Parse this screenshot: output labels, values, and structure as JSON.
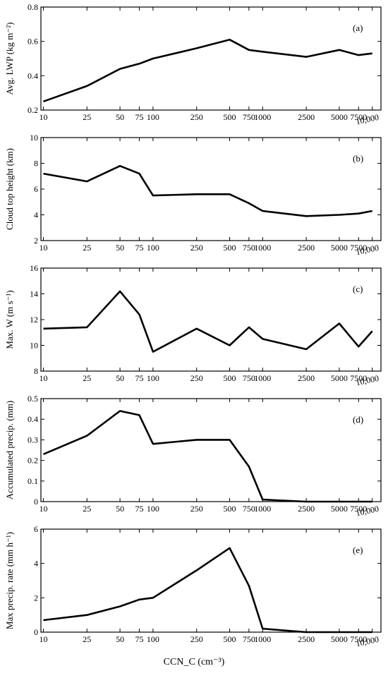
{
  "x_axis_label": "CCN_C (cm⁻³)",
  "x_tick_labels": [
    "10",
    "25",
    "50",
    "75",
    "100",
    "250",
    "500",
    "750",
    "1000",
    "2500",
    "5000",
    "7500",
    "10,000"
  ],
  "x_tick_values": [
    10,
    25,
    50,
    75,
    100,
    250,
    500,
    750,
    1000,
    2500,
    5000,
    7500,
    10000
  ],
  "chart_data": [
    {
      "type": "line",
      "panel_label": "(a)",
      "ylabel": "Avg. LWP (kg m⁻²)",
      "ylim": [
        0.2,
        0.8
      ],
      "yticks": [
        0.2,
        0.4,
        0.6,
        0.8
      ],
      "ytick_labels": [
        "0.2",
        "0.4",
        "0.6",
        "0.8"
      ],
      "xscale": "log",
      "x": [
        10,
        25,
        50,
        75,
        100,
        250,
        500,
        750,
        1000,
        2500,
        5000,
        7500,
        10000
      ],
      "y": [
        0.25,
        0.34,
        0.44,
        0.47,
        0.5,
        0.56,
        0.61,
        0.55,
        0.54,
        0.51,
        0.55,
        0.52,
        0.53
      ]
    },
    {
      "type": "line",
      "panel_label": "(b)",
      "ylabel": "Cloud top height (km)",
      "ylim": [
        2,
        10
      ],
      "yticks": [
        2,
        4,
        6,
        8,
        10
      ],
      "ytick_labels": [
        "2",
        "4",
        "6",
        "8",
        "10"
      ],
      "xscale": "log",
      "x": [
        10,
        25,
        50,
        75,
        100,
        250,
        500,
        750,
        1000,
        2500,
        5000,
        7500,
        10000
      ],
      "y": [
        7.2,
        6.6,
        7.8,
        7.2,
        5.5,
        5.6,
        5.6,
        4.9,
        4.3,
        3.9,
        4.0,
        4.1,
        4.3
      ]
    },
    {
      "type": "line",
      "panel_label": "(c)",
      "ylabel": "Max. W (m s⁻¹)",
      "ylim": [
        8,
        16
      ],
      "yticks": [
        8,
        10,
        12,
        14,
        16
      ],
      "ytick_labels": [
        "8",
        "10",
        "12",
        "14",
        "16"
      ],
      "xscale": "log",
      "x": [
        10,
        25,
        50,
        75,
        100,
        250,
        500,
        750,
        1000,
        2500,
        5000,
        7500,
        10000
      ],
      "y": [
        11.3,
        11.4,
        14.2,
        12.4,
        9.5,
        11.3,
        10.0,
        11.4,
        10.5,
        9.7,
        11.7,
        9.9,
        11.1
      ]
    },
    {
      "type": "line",
      "panel_label": "(d)",
      "ylabel": "Accumulated precip. (mm)",
      "ylim": [
        0,
        0.5
      ],
      "yticks": [
        0,
        0.1,
        0.2,
        0.3,
        0.4,
        0.5
      ],
      "ytick_labels": [
        "0",
        "0.1",
        "0.2",
        "0.3",
        "0.4",
        "0.5"
      ],
      "xscale": "log",
      "x": [
        10,
        25,
        50,
        75,
        100,
        250,
        500,
        750,
        1000,
        2500,
        5000,
        7500,
        10000
      ],
      "y": [
        0.23,
        0.32,
        0.44,
        0.42,
        0.28,
        0.3,
        0.3,
        0.17,
        0.01,
        0.0,
        0.0,
        0.0,
        0.0
      ]
    },
    {
      "type": "line",
      "panel_label": "(e)",
      "ylabel": "Max precip. rate (mm h⁻¹)",
      "ylim": [
        0,
        6
      ],
      "yticks": [
        0,
        2,
        4,
        6
      ],
      "ytick_labels": [
        "0",
        "2",
        "4",
        "6"
      ],
      "xscale": "log",
      "x": [
        10,
        25,
        50,
        75,
        100,
        250,
        500,
        750,
        1000,
        2500,
        5000,
        7500,
        10000
      ],
      "y": [
        0.7,
        1.0,
        1.5,
        1.9,
        2.0,
        3.6,
        4.9,
        2.7,
        0.2,
        0.0,
        0.0,
        0.0,
        0.0
      ]
    }
  ]
}
